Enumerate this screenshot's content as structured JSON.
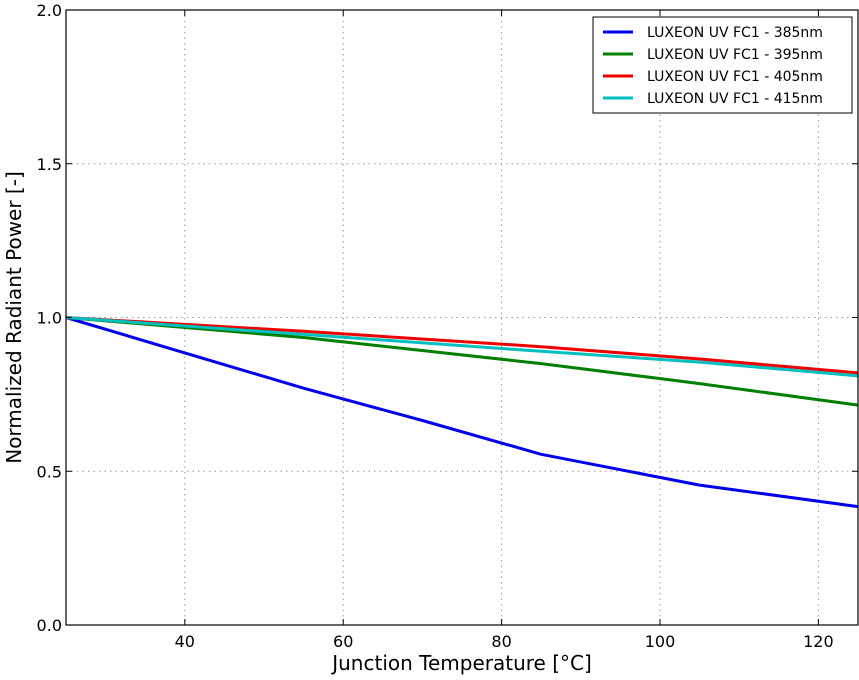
{
  "chart_data": {
    "type": "line",
    "title": "",
    "xlabel": "Junction Temperature [°C]",
    "ylabel": "Normalized Radiant Power [-]",
    "xlim": [
      25,
      125
    ],
    "ylim": [
      0.0,
      2.0
    ],
    "xticks": [
      40,
      60,
      80,
      100,
      120
    ],
    "xtick_labels": [
      "40",
      "60",
      "80",
      "100",
      "120"
    ],
    "yticks": [
      0.0,
      0.5,
      1.0,
      1.5,
      2.0
    ],
    "ytick_labels": [
      "0.0",
      "0.5",
      "1.0",
      "1.5",
      "2.0"
    ],
    "grid": true,
    "legend_position": "top-right",
    "series": [
      {
        "name": "LUXEON UV FC1 - 385nm",
        "color": "#0000ee",
        "x": [
          25,
          40,
          55,
          70,
          85,
          105,
          125
        ],
        "y": [
          1.0,
          0.885,
          0.77,
          0.665,
          0.555,
          0.455,
          0.385
        ]
      },
      {
        "name": "LUXEON UV FC1 - 395nm",
        "color": "#007f00",
        "x": [
          25,
          55,
          85,
          105,
          125
        ],
        "y": [
          1.0,
          0.935,
          0.85,
          0.785,
          0.715
        ]
      },
      {
        "name": "LUXEON UV FC1 - 405nm",
        "color": "#ee0000",
        "x": [
          25,
          55,
          85,
          105,
          125
        ],
        "y": [
          1.0,
          0.955,
          0.905,
          0.865,
          0.82
        ]
      },
      {
        "name": "LUXEON UV FC1 - 415nm",
        "color": "#00bfbf",
        "x": [
          25,
          55,
          85,
          105,
          125
        ],
        "y": [
          1.0,
          0.945,
          0.89,
          0.855,
          0.81
        ]
      }
    ]
  }
}
